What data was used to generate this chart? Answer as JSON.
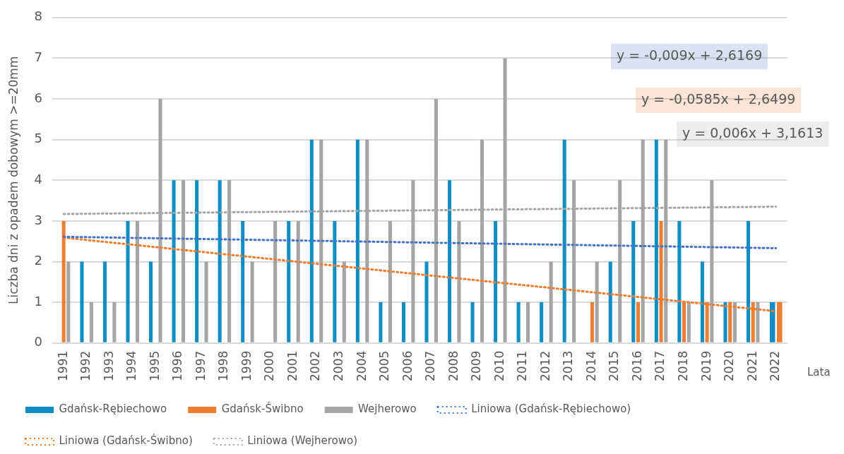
{
  "chart_data": {
    "type": "bar",
    "xlabel": "Lata",
    "ylabel": "Liczba dni z opadem dobowym >=20mm",
    "categories": [
      "1991",
      "1992",
      "1993",
      "1994",
      "1995",
      "1996",
      "1997",
      "1998",
      "1999",
      "2000",
      "2001",
      "2002",
      "2003",
      "2004",
      "2005",
      "2006",
      "2007",
      "2008",
      "2009",
      "2010",
      "2011",
      "2012",
      "2013",
      "2014",
      "2015",
      "2016",
      "2017",
      "2018",
      "2019",
      "2020",
      "2021",
      "2022"
    ],
    "series": [
      {
        "name": "Gdańsk-Rębiechowo",
        "color": "#0f8ec4",
        "values": [
          0,
          2,
          2,
          3,
          2,
          4,
          4,
          4,
          3,
          0,
          3,
          5,
          3,
          5,
          1,
          1,
          2,
          4,
          1,
          3,
          1,
          1,
          5,
          0,
          2,
          3,
          5,
          3,
          2,
          1,
          3,
          1
        ]
      },
      {
        "name": "Gdańsk-Świbno",
        "color": "#ed7d31",
        "values": [
          3,
          0,
          0,
          0,
          0,
          0,
          0,
          0,
          0,
          0,
          0,
          0,
          0,
          0,
          0,
          0,
          0,
          0,
          0,
          0,
          0,
          0,
          0,
          1,
          0,
          1,
          3,
          1,
          1,
          1,
          1,
          1
        ]
      },
      {
        "name": "Wejherowo",
        "color": "#a5a5a5",
        "values": [
          2,
          1,
          1,
          3,
          6,
          4,
          2,
          4,
          2,
          3,
          3,
          5,
          2,
          5,
          3,
          4,
          6,
          3,
          5,
          7,
          1,
          2,
          4,
          2,
          4,
          5,
          5,
          1,
          4,
          1,
          1,
          null
        ]
      },
      {
        "name": "Liniowa (Gdańsk-Rębiechowo)",
        "type": "line",
        "color": "#4472c4",
        "line_style": "dotted",
        "marker": "none",
        "values": [
          2.61,
          null,
          null,
          null,
          null,
          null,
          null,
          null,
          null,
          null,
          null,
          null,
          null,
          null,
          null,
          null,
          null,
          null,
          null,
          null,
          null,
          null,
          null,
          null,
          null,
          null,
          null,
          null,
          null,
          null,
          null,
          2.33
        ]
      },
      {
        "name": "Liniowa (Gdańsk-Świbno)",
        "type": "line",
        "color": "#ed7d31",
        "line_style": "dotted",
        "marker": "none",
        "values": [
          2.59,
          null,
          null,
          null,
          null,
          null,
          null,
          null,
          null,
          null,
          null,
          null,
          null,
          null,
          null,
          null,
          null,
          null,
          null,
          null,
          null,
          null,
          null,
          null,
          null,
          null,
          null,
          null,
          null,
          null,
          null,
          0.78
        ]
      },
      {
        "name": "Liniowa (Wejherowo)",
        "type": "line",
        "color": "#a5a5a5",
        "line_style": "dotted",
        "marker": "none",
        "values": [
          3.17,
          null,
          null,
          null,
          null,
          null,
          null,
          null,
          null,
          null,
          null,
          null,
          null,
          null,
          null,
          null,
          null,
          null,
          null,
          null,
          null,
          null,
          null,
          null,
          null,
          null,
          null,
          null,
          null,
          null,
          null,
          3.35
        ]
      }
    ],
    "annotations": [
      "y = -0,009x + 2,6169",
      "y = -0,0585x + 2,6499",
      "y = 0,006x + 3,1613"
    ],
    "ylim": [
      0,
      8
    ],
    "yticks": [
      0,
      1,
      2,
      3,
      4,
      5,
      6,
      7,
      8
    ],
    "grid": "y",
    "legend": "bottom"
  }
}
